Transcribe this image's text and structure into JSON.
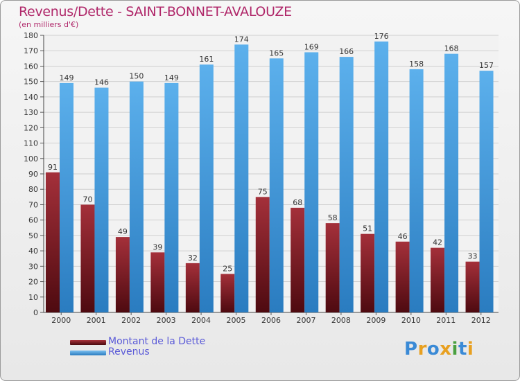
{
  "chart_data": {
    "type": "bar",
    "title": "Revenus/Dette - SAINT-BONNET-AVALOUZE",
    "subtitle": "(en milliers d'€)",
    "categories": [
      "2000",
      "2001",
      "2002",
      "2003",
      "2004",
      "2005",
      "2006",
      "2007",
      "2008",
      "2009",
      "2010",
      "2011",
      "2012"
    ],
    "series": [
      {
        "name": "Montant de la Dette",
        "color": "#7a1a1e",
        "values": [
          91,
          70,
          49,
          39,
          32,
          25,
          75,
          68,
          58,
          51,
          46,
          42,
          33
        ]
      },
      {
        "name": "Revenus",
        "color": "#4aa0e0",
        "values": [
          149,
          146,
          150,
          149,
          161,
          174,
          165,
          169,
          166,
          176,
          158,
          168,
          157
        ]
      }
    ],
    "ylim": [
      0,
      180
    ],
    "ytick_step": 10,
    "grid": true,
    "legend_position": "bottom-left"
  },
  "logo": {
    "letters": [
      {
        "ch": "P",
        "color": "#3a8ad6"
      },
      {
        "ch": "r",
        "color": "#e8a020"
      },
      {
        "ch": "o",
        "color": "#3a8ad6"
      },
      {
        "ch": "x",
        "color": "#e8a020"
      },
      {
        "ch": "i",
        "color": "#4aa040"
      },
      {
        "ch": "t",
        "color": "#3a8ad6"
      },
      {
        "ch": "i",
        "color": "#e8a020"
      }
    ]
  }
}
